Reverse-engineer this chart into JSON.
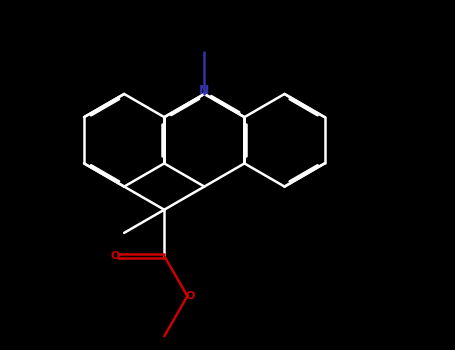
{
  "bg_color": "#000000",
  "bond_color": "#ffffff",
  "N_color": "#3333aa",
  "O_color": "#cc0000",
  "bond_width": 1.8,
  "dbo": 0.06,
  "figsize": [
    4.55,
    3.5
  ],
  "dpi": 100,
  "xlim": [
    -2.5,
    4.5
  ],
  "ylim": [
    -4.0,
    3.5
  ]
}
